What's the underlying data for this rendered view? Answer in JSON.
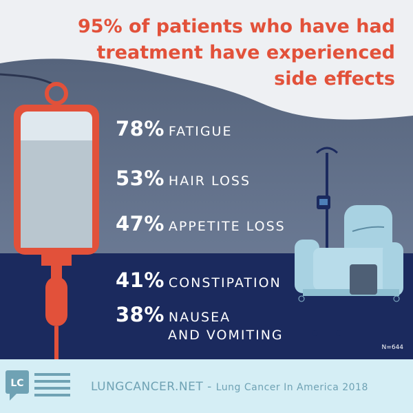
{
  "headline": {
    "line1": "95% of patients who have had",
    "line2": "treatment have experienced",
    "line3": "side effects"
  },
  "stats": [
    {
      "percent": "78%",
      "label": "FATIGUE",
      "label_line2": ""
    },
    {
      "percent": "53%",
      "label": "HAIR LOSS",
      "label_line2": ""
    },
    {
      "percent": "47%",
      "label": "APPETITE LOSS",
      "label_line2": ""
    },
    {
      "percent": "41%",
      "label": "CONSTIPATION",
      "label_line2": ""
    },
    {
      "percent": "38%",
      "label": "NAUSEA",
      "label_line2": "AND VOMITING"
    }
  ],
  "sample_size": "N=644",
  "footer": {
    "site": "LUNGCANCER.NET",
    "separator": " - ",
    "report": "Lung Cancer In America 2018",
    "logo_text": "LC"
  },
  "colors": {
    "accent": "#e2513a",
    "dark_navy": "#1b2a5e",
    "slate": "#5e6e86",
    "footer_bg": "#d5eef5",
    "footer_text": "#6fa2b4"
  },
  "icons": [
    "iv-bag-icon",
    "iv-pole-icon",
    "recliner-chair-icon",
    "lungcancer-logo-icon"
  ]
}
